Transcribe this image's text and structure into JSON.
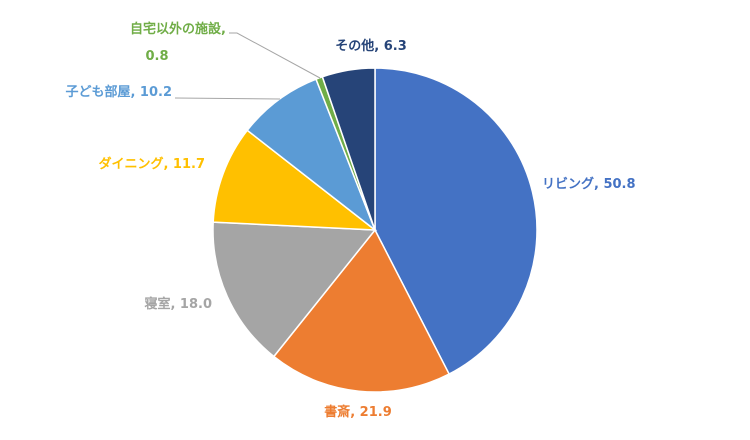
{
  "chart_data": {
    "type": "pie",
    "title": "",
    "start_angle_deg": 0,
    "direction": "clockwise",
    "slices": [
      {
        "label": "リビング",
        "value": 50.8,
        "color": "#4472C4",
        "label_color": "#4472C4"
      },
      {
        "label": "書斎",
        "value": 21.9,
        "color": "#ED7D31",
        "label_color": "#ED7D31"
      },
      {
        "label": "寝室",
        "value": 18.0,
        "color": "#A5A5A5",
        "label_color": "#A5A5A5"
      },
      {
        "label": "ダイニング",
        "value": 11.7,
        "color": "#FFC000",
        "label_color": "#FFC000"
      },
      {
        "label": "子ども部屋",
        "value": 10.2,
        "color": "#5B9BD5",
        "label_color": "#5B9BD5"
      },
      {
        "label": "自宅以外の施設",
        "value": 0.8,
        "color": "#70AD47",
        "label_color": "#70AD47"
      },
      {
        "label": "その他",
        "value": 6.3,
        "color": "#264478",
        "label_color": "#264478"
      }
    ],
    "data_labels": [
      "リビング, 50.8",
      "書斎, 21.9",
      "寝室, 18.0",
      "ダイニング, 11.7",
      "子ども部屋, 10.2",
      "自宅以外の施設,",
      "0.8",
      "その他, 6.3"
    ]
  }
}
